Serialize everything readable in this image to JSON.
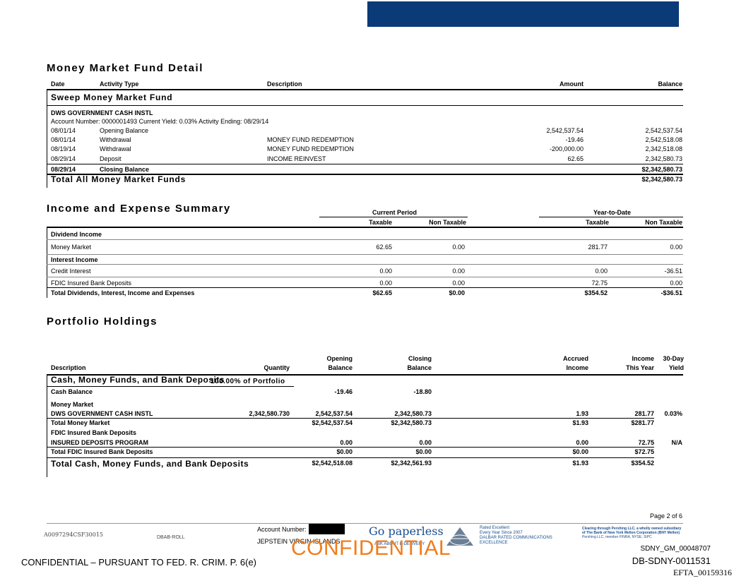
{
  "mmf": {
    "title": "Money Market Fund Detail",
    "headers": {
      "date": "Date",
      "activity": "Activity Type",
      "description": "Description",
      "amount": "Amount",
      "balance": "Balance"
    },
    "sweep_title": "Sweep Money Market Fund",
    "fund_name": "DWS GOVERNMENT CASH INSTL",
    "account_line": "Account Number: 0000001493 Current Yield: 0.03% Activity Ending: 08/29/14",
    "rows": [
      {
        "date": "08/01/14",
        "activity": "Opening Balance",
        "description": "",
        "amount": "2,542,537.54",
        "balance": "2,542,537.54"
      },
      {
        "date": "08/01/14",
        "activity": "Withdrawal",
        "description": "MONEY FUND REDEMPTION",
        "amount": "-19.46",
        "balance": "2,542,518.08"
      },
      {
        "date": "08/19/14",
        "activity": "Withdrawal",
        "description": "MONEY FUND REDEMPTION",
        "amount": "-200,000.00",
        "balance": "2,342,518.08"
      },
      {
        "date": "08/29/14",
        "activity": "Deposit",
        "description": "INCOME REINVEST",
        "amount": "62.65",
        "balance": "2,342,580.73"
      }
    ],
    "closing": {
      "date": "08/29/14",
      "activity": "Closing Balance",
      "balance": "$2,342,580.73"
    },
    "total": {
      "label": "Total All Money Market Funds",
      "balance": "$2,342,580.73"
    }
  },
  "income": {
    "title": "Income and Expense Summary",
    "current_period": "Current Period",
    "ytd": "Year-to-Date",
    "taxable": "Taxable",
    "non_taxable": "Non Taxable",
    "dividend_header": "Dividend Income",
    "money_market": {
      "label": "Money Market",
      "cp_tax": "62.65",
      "cp_nontax": "0.00",
      "ytd_tax": "281.77",
      "ytd_nontax": "0.00"
    },
    "interest_header": "Interest Income",
    "credit_interest": {
      "label": "Credit Interest",
      "cp_tax": "0.00",
      "cp_nontax": "0.00",
      "ytd_tax": "0.00",
      "ytd_nontax": "-36.51"
    },
    "fdic": {
      "label": "FDIC Insured Bank Deposits",
      "cp_tax": "0.00",
      "cp_nontax": "0.00",
      "ytd_tax": "72.75",
      "ytd_nontax": "0.00"
    },
    "total": {
      "label": "Total Dividends, Interest, Income and Expenses",
      "cp_tax": "$62.65",
      "cp_nontax": "$0.00",
      "ytd_tax": "$354.52",
      "ytd_nontax": "-$36.51"
    }
  },
  "portfolio": {
    "title": "Portfolio Holdings",
    "headers": {
      "description": "Description",
      "quantity": "Quantity",
      "opening_1": "Opening",
      "opening_2": "Balance",
      "closing_1": "Closing",
      "closing_2": "Balance",
      "accrued_1": "Accrued",
      "accrued_2": "Income",
      "income_1": "Income",
      "income_2": "This Year",
      "yield_1": "30-Day",
      "yield_2": "Yield"
    },
    "section_title": "Cash, Money Funds, and Bank Deposits",
    "section_pct": "100.00% of Portfolio",
    "cash_balance": {
      "label": "Cash Balance",
      "opening": "-19.46",
      "closing": "-18.80"
    },
    "mm_header": "Money Market",
    "dws": {
      "label": "DWS GOVERNMENT CASH INSTL",
      "quantity": "2,342,580.730",
      "opening": "2,542,537.54",
      "closing": "2,342,580.73",
      "accrued": "1.93",
      "income": "281.77",
      "yield": "0.03%"
    },
    "total_mm": {
      "label": "Total Money Market",
      "opening": "$2,542,537.54",
      "closing": "$2,342,580.73",
      "accrued": "$1.93",
      "income": "$281.77"
    },
    "fdic_header": "FDIC Insured Bank Deposits",
    "insured": {
      "label": "INSURED DEPOSITS PROGRAM",
      "opening": "0.00",
      "closing": "0.00",
      "accrued": "0.00",
      "income": "72.75",
      "yield": "N/A"
    },
    "total_fdic": {
      "label": "Total FDIC Insured Bank Deposits",
      "opening": "$0.00",
      "closing": "$0.00",
      "accrued": "$0.00",
      "income": "$72.75"
    },
    "total": {
      "label": "Total Cash, Money Funds, and Bank Deposits",
      "opening": "$2,542,518.08",
      "closing": "$2,342,561.93",
      "accrued": "$1.93",
      "income": "$354.52"
    }
  },
  "footer": {
    "page": "Page 2 of 6",
    "doc_code": "A0097294CSF30015",
    "dbab": "DBAB-ROLL",
    "account_label": "Account Number:",
    "client": "JEPSTEIN VIRGIN ISLANDS",
    "go_paperless": "Go paperless",
    "ask_about": "ASK ABOUT E-DELIVERY",
    "rated_1": "Rated Excellent",
    "rated_2": "Every Year Since 2007",
    "rated_3": "DALBAR RATED COMMUNICATIONS",
    "rated_4": "EXCELLENCE",
    "clearing_1": "Clearing through Pershing LLC, a wholly owned subsidiary",
    "clearing_2": "of The Bank of New York Mellon Corporation (BNY Mellon)",
    "clearing_3": "Pershing LLC, member FINRA, NYSE, SIPC",
    "confidential_orange": "CONFIDENTIAL",
    "confidential_notice": "CONFIDENTIAL – PURSUANT TO FED. R. CRIM. P. 6(e)",
    "bates_1": "SDNY_GM_00048707",
    "bates_2": "DB-SDNY-0011531",
    "bates_3": "EFTA_00159316",
    "colors": {
      "topbar": "#0b3a78",
      "orange": "#f07d1c",
      "logo_blue": "#1a4d8f"
    }
  }
}
